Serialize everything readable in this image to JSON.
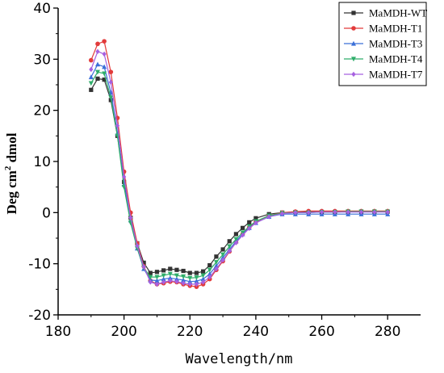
{
  "chart_data": {
    "type": "line",
    "title": "",
    "xlabel": "Wavelength/nm",
    "ylabel_prefix": "Deg cm",
    "ylabel_sup": "2",
    "ylabel_suffix": " dmol",
    "xlim": [
      180,
      290
    ],
    "ylim": [
      -20,
      40
    ],
    "xticks": [
      180,
      200,
      220,
      240,
      260,
      280
    ],
    "yticks": [
      -20,
      -10,
      0,
      10,
      20,
      30,
      40
    ],
    "legend_position": "top-right",
    "grid": false,
    "x": [
      190,
      192,
      194,
      196,
      198,
      200,
      202,
      204,
      206,
      208,
      210,
      212,
      214,
      216,
      218,
      220,
      222,
      224,
      226,
      228,
      230,
      232,
      234,
      236,
      238,
      240,
      244,
      248,
      252,
      256,
      260,
      264,
      268,
      272,
      276,
      280
    ],
    "series": [
      {
        "name": "MaMDH-WT",
        "color": "#333333",
        "marker": "square",
        "values": [
          24.0,
          26.2,
          26.0,
          22.0,
          15.0,
          6.0,
          -1.0,
          -6.0,
          -9.8,
          -11.8,
          -11.6,
          -11.3,
          -11.0,
          -11.2,
          -11.4,
          -11.8,
          -11.8,
          -11.5,
          -10.3,
          -8.6,
          -7.2,
          -5.6,
          -4.2,
          -3.0,
          -1.9,
          -1.1,
          -0.3,
          0.0,
          0.1,
          0.1,
          0.1,
          0.1,
          0.2,
          0.2,
          0.2,
          0.2
        ]
      },
      {
        "name": "MaMDH-T1",
        "color": "#e23b3b",
        "marker": "circle",
        "values": [
          29.8,
          33.0,
          33.5,
          27.5,
          18.5,
          8.0,
          0.0,
          -6.0,
          -10.5,
          -13.3,
          -14.0,
          -13.8,
          -13.5,
          -13.6,
          -14.0,
          -14.3,
          -14.5,
          -14.0,
          -13.0,
          -11.2,
          -9.5,
          -7.6,
          -5.8,
          -4.2,
          -2.9,
          -1.8,
          -0.6,
          0.0,
          0.2,
          0.3,
          0.3,
          0.3,
          0.3,
          0.3,
          0.3,
          0.3
        ]
      },
      {
        "name": "MaMDH-T3",
        "color": "#3a6fd8",
        "marker": "triangle-up",
        "values": [
          26.5,
          29.0,
          28.5,
          23.5,
          15.5,
          5.5,
          -1.5,
          -7.0,
          -11.0,
          -13.2,
          -13.3,
          -13.0,
          -12.8,
          -13.0,
          -13.2,
          -13.5,
          -13.4,
          -13.0,
          -12.0,
          -10.4,
          -8.8,
          -7.2,
          -5.6,
          -4.2,
          -3.0,
          -2.0,
          -0.8,
          -0.3,
          -0.3,
          -0.3,
          -0.3,
          -0.3,
          -0.3,
          -0.3,
          -0.3,
          -0.3
        ]
      },
      {
        "name": "MaMDH-T4",
        "color": "#2fae6a",
        "marker": "triangle-down",
        "values": [
          25.3,
          27.5,
          27.2,
          22.5,
          15.0,
          5.0,
          -2.0,
          -7.0,
          -10.8,
          -12.6,
          -12.6,
          -12.3,
          -12.0,
          -12.3,
          -12.5,
          -12.8,
          -12.7,
          -12.3,
          -11.2,
          -9.7,
          -8.2,
          -6.6,
          -5.2,
          -3.9,
          -2.7,
          -1.7,
          -0.6,
          -0.1,
          0.0,
          0.0,
          0.1,
          0.1,
          0.2,
          0.2,
          0.2,
          0.2
        ]
      },
      {
        "name": "MaMDH-T7",
        "color": "#a660e0",
        "marker": "diamond",
        "values": [
          28.0,
          31.5,
          31.0,
          25.5,
          17.0,
          7.0,
          -1.0,
          -6.5,
          -10.6,
          -13.6,
          -14.0,
          -13.6,
          -13.3,
          -13.5,
          -13.8,
          -14.0,
          -14.0,
          -13.6,
          -12.6,
          -11.0,
          -9.3,
          -7.5,
          -5.9,
          -4.4,
          -3.1,
          -2.0,
          -0.8,
          -0.2,
          0.0,
          0.0,
          0.1,
          0.1,
          0.1,
          0.1,
          0.1,
          0.1
        ]
      }
    ]
  }
}
